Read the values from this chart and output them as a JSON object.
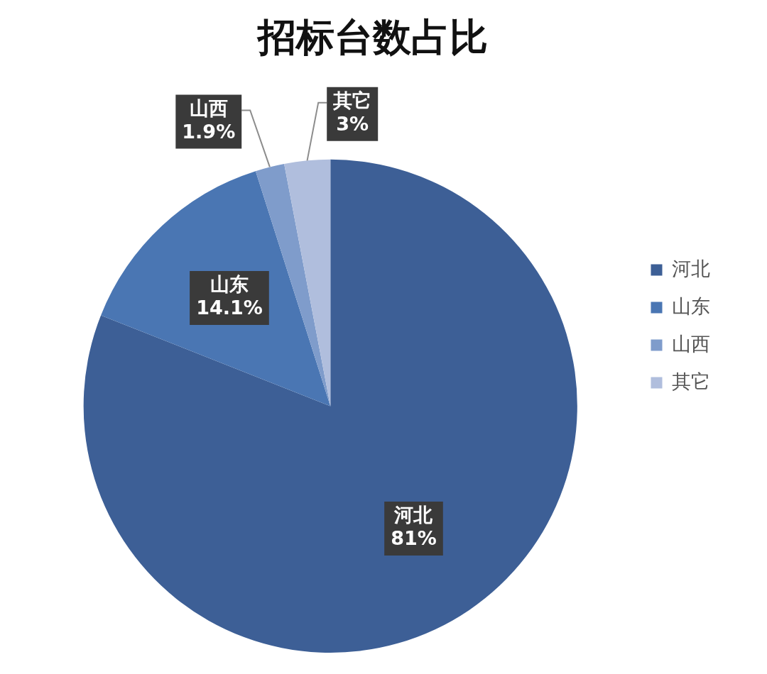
{
  "chart_data": {
    "type": "pie",
    "title": "招标台数占比",
    "categories": [
      "河北",
      "山东",
      "山西",
      "其它"
    ],
    "values": [
      81,
      14.1,
      1.9,
      3
    ],
    "colors": [
      "#3d5f96",
      "#4a76b3",
      "#7f9ccb",
      "#b0bedd"
    ],
    "value_labels": [
      "81%",
      "14.1%",
      "1.9%",
      "3%"
    ],
    "legend": "right"
  }
}
